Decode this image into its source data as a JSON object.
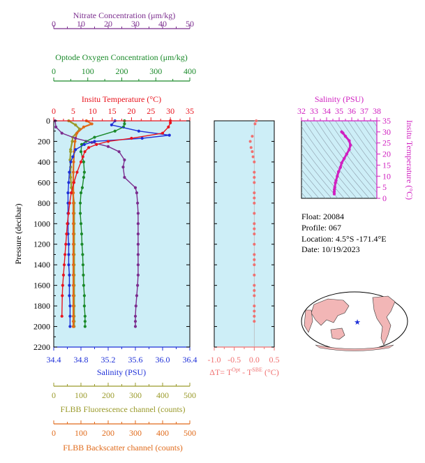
{
  "colors": {
    "nitrate": "#7b2d8e",
    "oxygen": "#1a8a2a",
    "temperature": "#e8141e",
    "salinity": "#1d2fd8",
    "fluorescence": "#9a9a2a",
    "backscatter": "#e06a1a",
    "delta": "#f07070",
    "salinity_inset": "#d020c0",
    "plot_bg": "#cdeef7",
    "legend_gray": "#555555"
  },
  "main_panel": {
    "pressure_axis": {
      "label": "Pressure (decibar)",
      "range": [
        0,
        2200
      ],
      "ticks": [
        0,
        200,
        400,
        600,
        800,
        1000,
        1200,
        1400,
        1600,
        1800,
        2000,
        2200
      ]
    },
    "nitrate_axis": {
      "label": "Nitrate Concentration (μm/kg)",
      "range": [
        0,
        50
      ],
      "ticks": [
        0,
        10,
        20,
        30,
        40,
        50
      ]
    },
    "oxygen_axis": {
      "label": "Optode Oxygen Concentration (μm/kg)",
      "range": [
        0,
        400
      ],
      "ticks": [
        0,
        100,
        200,
        300,
        400
      ]
    },
    "temperature_axis": {
      "label": "Insitu Temperature (°C)",
      "range": [
        0,
        35
      ],
      "ticks": [
        0,
        5,
        10,
        15,
        20,
        25,
        30,
        35
      ]
    },
    "salinity_axis": {
      "label": "Salinity (PSU)",
      "range": [
        34.4,
        36.4
      ],
      "ticks": [
        "34.4",
        "34.8",
        "35.2",
        "35.6",
        "36.0",
        "36.4"
      ]
    },
    "fluorescence_axis": {
      "label": "FLBB Fluorescence channel (counts)",
      "range": [
        0,
        500
      ],
      "ticks": [
        0,
        100,
        200,
        300,
        400,
        500
      ]
    },
    "backscatter_axis": {
      "label": "FLBB Backscatter channel (counts)",
      "range": [
        0,
        500
      ],
      "ticks": [
        0,
        100,
        200,
        300,
        400,
        500
      ]
    }
  },
  "delta_panel": {
    "label": "ΔT= T",
    "label_sup1": "Opt",
    "label_mid": " - T",
    "label_sup2": "SBE",
    "label_end": " (°C)",
    "range": [
      -1.0,
      0.5
    ],
    "ticks": [
      "-1.0",
      "-0.5",
      "0.0",
      "0.5"
    ]
  },
  "ts_panel": {
    "salinity_label": "Salinity (PSU)",
    "salinity_range": [
      32,
      38
    ],
    "salinity_ticks": [
      32,
      33,
      34,
      35,
      36,
      37,
      38
    ],
    "temperature_label": "Insitu Temperature (°C)",
    "temperature_range": [
      0,
      35
    ],
    "temperature_ticks": [
      0,
      5,
      10,
      15,
      20,
      25,
      30,
      35
    ]
  },
  "info": {
    "float": "Float:  20084",
    "profile": "Profile:  067",
    "location": "Location:  4.5°S  -171.4°E",
    "date": "Date:  10/19/2023"
  },
  "chart_data": [
    {
      "type": "line",
      "series": [
        {
          "name": "Insitu Temperature",
          "x": [
            30,
            30,
            29.5,
            28,
            20,
            14,
            11,
            9,
            8,
            7.5,
            7,
            6,
            5.2,
            4.5,
            4.1,
            3.8,
            3.5,
            3.3,
            3.1,
            2.9,
            2.7,
            2.5,
            2.3,
            2.2,
            2.1
          ],
          "y": [
            0,
            20,
            60,
            120,
            170,
            200,
            230,
            260,
            300,
            350,
            400,
            500,
            600,
            700,
            800,
            900,
            1000,
            1100,
            1200,
            1300,
            1400,
            1500,
            1600,
            1700,
            1900
          ]
        },
        {
          "name": "Salinity",
          "x": [
            35.3,
            35.25,
            35.65,
            36.1,
            35.7,
            35.0,
            34.85,
            34.72,
            34.68,
            34.65,
            34.63,
            34.62,
            34.61,
            34.61,
            34.61,
            34.61,
            34.61,
            34.62,
            34.62,
            34.62,
            34.63,
            34.63,
            34.63,
            34.64,
            34.64,
            34.64
          ],
          "y": [
            0,
            40,
            100,
            140,
            170,
            200,
            230,
            280,
            350,
            400,
            500,
            600,
            700,
            800,
            900,
            1000,
            1100,
            1200,
            1300,
            1400,
            1500,
            1600,
            1700,
            1800,
            1900,
            2000
          ]
        },
        {
          "name": "Nitrate",
          "x": [
            0.5,
            0.8,
            3,
            8,
            14,
            20,
            24,
            26,
            25.5,
            26,
            30,
            30.5,
            30.8,
            31,
            31,
            31,
            31,
            31,
            31,
            31,
            30.8,
            30.5,
            30.2,
            30,
            30,
            30
          ],
          "y": [
            0,
            60,
            120,
            170,
            210,
            250,
            300,
            380,
            450,
            550,
            650,
            700,
            800,
            900,
            1000,
            1100,
            1200,
            1300,
            1400,
            1500,
            1600,
            1700,
            1800,
            1900,
            1950,
            2000
          ]
        },
        {
          "name": "Oxygen",
          "x": [
            208,
            208,
            205,
            180,
            120,
            95,
            82,
            80,
            88,
            90,
            88,
            84,
            80,
            78,
            78,
            80,
            82,
            83,
            85,
            86,
            87,
            88,
            90,
            90,
            92,
            92,
            92
          ],
          "y": [
            0,
            30,
            60,
            100,
            160,
            200,
            230,
            300,
            400,
            500,
            550,
            650,
            700,
            800,
            900,
            1000,
            1100,
            1200,
            1300,
            1400,
            1500,
            1600,
            1700,
            1800,
            1900,
            1950,
            2000
          ]
        },
        {
          "name": "Fluorescence",
          "x": [
            55,
            80,
            95,
            70,
            68,
            62,
            62,
            60,
            62,
            62,
            65,
            70,
            75,
            75,
            75,
            75,
            75,
            75,
            75,
            75,
            75,
            75,
            75,
            75,
            75,
            75
          ],
          "y": [
            0,
            40,
            80,
            160,
            200,
            280,
            300,
            380,
            450,
            550,
            650,
            700,
            800,
            900,
            1000,
            1100,
            1200,
            1300,
            1400,
            1500,
            1600,
            1700,
            1800,
            1900,
            1950,
            2000
          ]
        },
        {
          "name": "Backscatter",
          "x": [
            120,
            140,
            110,
            85,
            78,
            75,
            73,
            72,
            72,
            72,
            72,
            72,
            72,
            72,
            72,
            72,
            72,
            72,
            72,
            72,
            72,
            72,
            72,
            72,
            72,
            72
          ],
          "y": [
            0,
            30,
            60,
            120,
            200,
            300,
            400,
            500,
            600,
            700,
            800,
            900,
            1000,
            1100,
            1200,
            1300,
            1400,
            1500,
            1600,
            1700,
            1800,
            1900,
            1950,
            2000,
            2000,
            2000
          ]
        }
      ]
    },
    {
      "type": "scatter",
      "series": [
        {
          "name": "ΔT",
          "x": [
            0.05,
            0.02,
            -0.05,
            -0.1,
            -0.08,
            -0.05,
            -0.03,
            0.0,
            0.0,
            0.0,
            0.0,
            0.0,
            0.0,
            0.0,
            0.0,
            0.0,
            0.0,
            0.0,
            0.0,
            0.0,
            0.0,
            0.0,
            0.0,
            0.0,
            0.0,
            0.0,
            0.0,
            0.0,
            0.0,
            0.0
          ],
          "y": [
            0,
            30,
            150,
            200,
            260,
            300,
            350,
            400,
            500,
            550,
            600,
            700,
            750,
            800,
            900,
            1000,
            1050,
            1100,
            1200,
            1300,
            1350,
            1400,
            1500,
            1600,
            1650,
            1700,
            1800,
            1850,
            1900,
            1950
          ]
        }
      ]
    },
    {
      "type": "line",
      "series": [
        {
          "name": "T-S",
          "x": [
            35.2,
            35.3,
            35.5,
            35.8,
            35.9,
            35.8,
            35.6,
            35.4,
            35.2,
            35.1,
            34.95,
            34.85,
            34.75,
            34.7,
            34.65,
            34.62,
            34.61,
            34.61
          ],
          "y": [
            30,
            29.5,
            28,
            26,
            24,
            22,
            20,
            18,
            16,
            14,
            12,
            10,
            8,
            7,
            5,
            4,
            3,
            2
          ]
        }
      ]
    }
  ]
}
